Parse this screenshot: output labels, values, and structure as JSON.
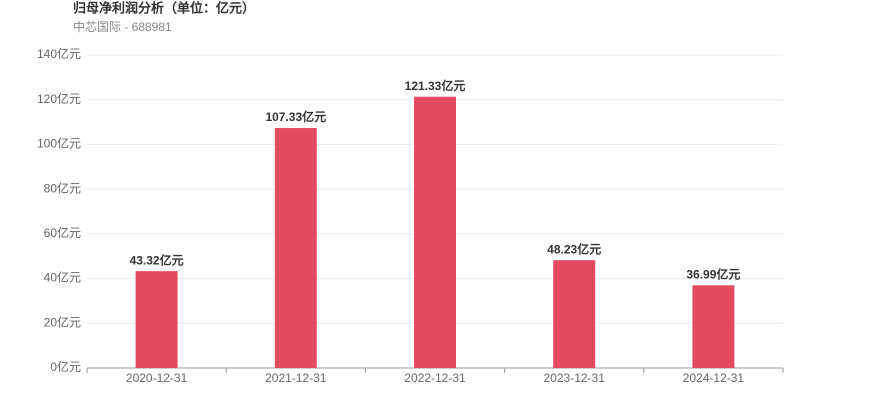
{
  "chart_data": {
    "type": "bar",
    "title": "归母净利润分析（单位：亿元）",
    "subtitle": "中芯国际 - 688981",
    "categories": [
      "2020-12-31",
      "2021-12-31",
      "2022-12-31",
      "2023-12-31",
      "2024-12-31"
    ],
    "values": [
      43.32,
      107.33,
      121.33,
      48.23,
      36.99
    ],
    "value_labels": [
      "43.32亿元",
      "107.33亿元",
      "121.33亿元",
      "48.23亿元",
      "36.99亿元"
    ],
    "color": "#e34b60",
    "ylim": [
      0,
      140
    ],
    "yticks": [
      {
        "value": 0,
        "label": "0亿元"
      },
      {
        "value": 20,
        "label": "20亿元"
      },
      {
        "value": 40,
        "label": "40亿元"
      },
      {
        "value": 60,
        "label": "60亿元"
      },
      {
        "value": 80,
        "label": "80亿元"
      },
      {
        "value": 100,
        "label": "100亿元"
      },
      {
        "value": 120,
        "label": "120亿元"
      },
      {
        "value": 140,
        "label": "140亿元"
      }
    ],
    "grid": true
  }
}
